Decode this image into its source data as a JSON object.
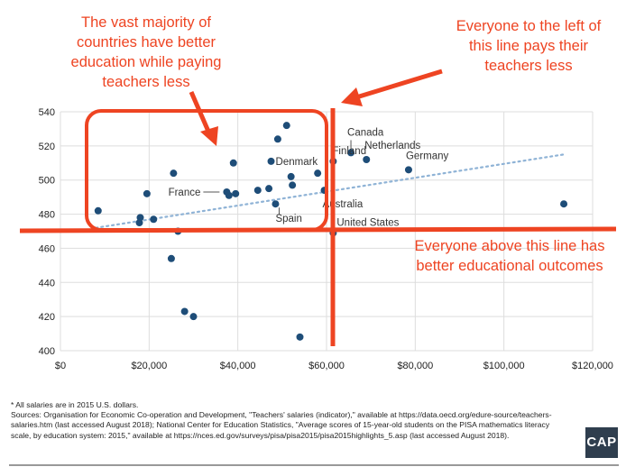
{
  "chart_data": {
    "type": "scatter",
    "title": "",
    "xlabel": "",
    "ylabel": "",
    "xlim": [
      0,
      120000
    ],
    "ylim": [
      400,
      540
    ],
    "x_ticks": [
      0,
      20000,
      40000,
      60000,
      80000,
      100000,
      120000
    ],
    "x_tick_labels": [
      "$0",
      "$20,000",
      "$40,000",
      "$60,000",
      "$80,000",
      "$100,000",
      "$120,000"
    ],
    "y_ticks": [
      400,
      420,
      440,
      460,
      480,
      500,
      520,
      540
    ],
    "y_tick_labels": [
      "400",
      "420",
      "440",
      "460",
      "480",
      "500",
      "520",
      "540"
    ],
    "grid": true,
    "point_color": "#1e4d78",
    "points": [
      {
        "x": 8500,
        "y": 482,
        "label": ""
      },
      {
        "x": 17800,
        "y": 475,
        "label": ""
      },
      {
        "x": 18000,
        "y": 478,
        "label": ""
      },
      {
        "x": 19500,
        "y": 492,
        "label": ""
      },
      {
        "x": 21000,
        "y": 477,
        "label": ""
      },
      {
        "x": 25000,
        "y": 454,
        "label": ""
      },
      {
        "x": 25500,
        "y": 504,
        "label": ""
      },
      {
        "x": 26500,
        "y": 470,
        "label": ""
      },
      {
        "x": 28000,
        "y": 423,
        "label": ""
      },
      {
        "x": 30000,
        "y": 420,
        "label": ""
      },
      {
        "x": 37500,
        "y": 493,
        "label": "France"
      },
      {
        "x": 38000,
        "y": 491,
        "label": ""
      },
      {
        "x": 39000,
        "y": 510,
        "label": ""
      },
      {
        "x": 39500,
        "y": 492,
        "label": ""
      },
      {
        "x": 44500,
        "y": 494,
        "label": ""
      },
      {
        "x": 47000,
        "y": 495,
        "label": ""
      },
      {
        "x": 47500,
        "y": 511,
        "label": "Denmark"
      },
      {
        "x": 48500,
        "y": 486,
        "label": "Spain"
      },
      {
        "x": 49000,
        "y": 524,
        "label": ""
      },
      {
        "x": 51000,
        "y": 532,
        "label": ""
      },
      {
        "x": 52000,
        "y": 502,
        "label": ""
      },
      {
        "x": 52300,
        "y": 497,
        "label": ""
      },
      {
        "x": 54000,
        "y": 408,
        "label": ""
      },
      {
        "x": 58000,
        "y": 504,
        "label": ""
      },
      {
        "x": 59500,
        "y": 494,
        "label": "Australia"
      },
      {
        "x": 61500,
        "y": 511,
        "label": "Finland"
      },
      {
        "x": 61500,
        "y": 469,
        "label": "United States"
      },
      {
        "x": 65500,
        "y": 516,
        "label": "Canada"
      },
      {
        "x": 69000,
        "y": 512,
        "label": "Netherlands"
      },
      {
        "x": 78500,
        "y": 506,
        "label": "Germany"
      },
      {
        "x": 113500,
        "y": 486,
        "label": ""
      }
    ],
    "trendline": {
      "x": [
        8000,
        113500
      ],
      "y": [
        472,
        515
      ],
      "color": "#8fb3d6",
      "style": "dotted"
    }
  },
  "annotations": {
    "top_left": "The vast majority of countries have better education while paying teachers less",
    "top_right": "Everyone to the left of this line pays their teachers less",
    "right": "Everyone above this line has better educational outcomes",
    "color": "#ee4422"
  },
  "footer": {
    "note": "* All salaries are in 2015 U.S. dollars.",
    "sources": "Sources: Organisation for Economic Co-operation and Development, \"Teachers' salaries (indicator),\" available at https://data.oecd.org/edure-source/teachers-salaries.htm (last accessed August 2018); National Center for Education Statistics, \"Average scores of 15-year-old students on the PISA mathematics literacy scale, by education system: 2015,\" available at https://nces.ed.gov/surveys/pisa/pisa2015/pisa2015highlights_5.asp (last accessed August 2018).",
    "logo_text": "CAP"
  }
}
